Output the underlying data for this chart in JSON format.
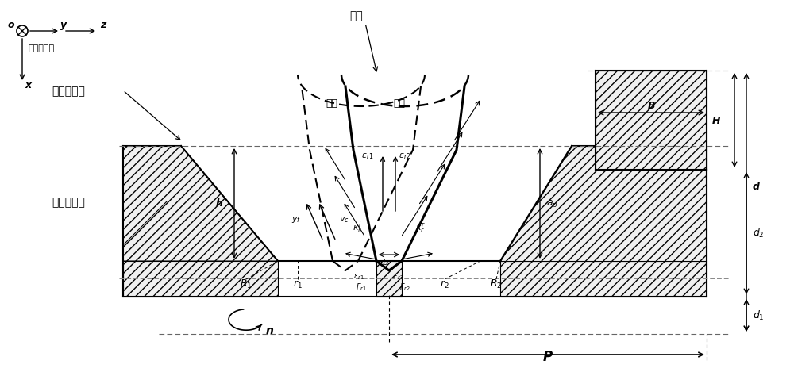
{
  "fig_width": 10.0,
  "fig_height": 4.69,
  "bg_color": "#ffffff",
  "line_color": "#000000",
  "labels": {
    "P": "P",
    "d1": "d_1",
    "d2": "d_2",
    "d": "d",
    "B": "B",
    "h": "h",
    "n": "n",
    "H": "H",
    "b": "b",
    "machine_coord": "机床坐标系",
    "surface_to_cut": "待加工表面",
    "machined_surface": "已加工表面",
    "tool": "刀具",
    "left_edge": "左刃",
    "right_edge": "右刃",
    "o": "o",
    "y_axis": "y",
    "z_axis": "z",
    "x_axis": "x"
  }
}
